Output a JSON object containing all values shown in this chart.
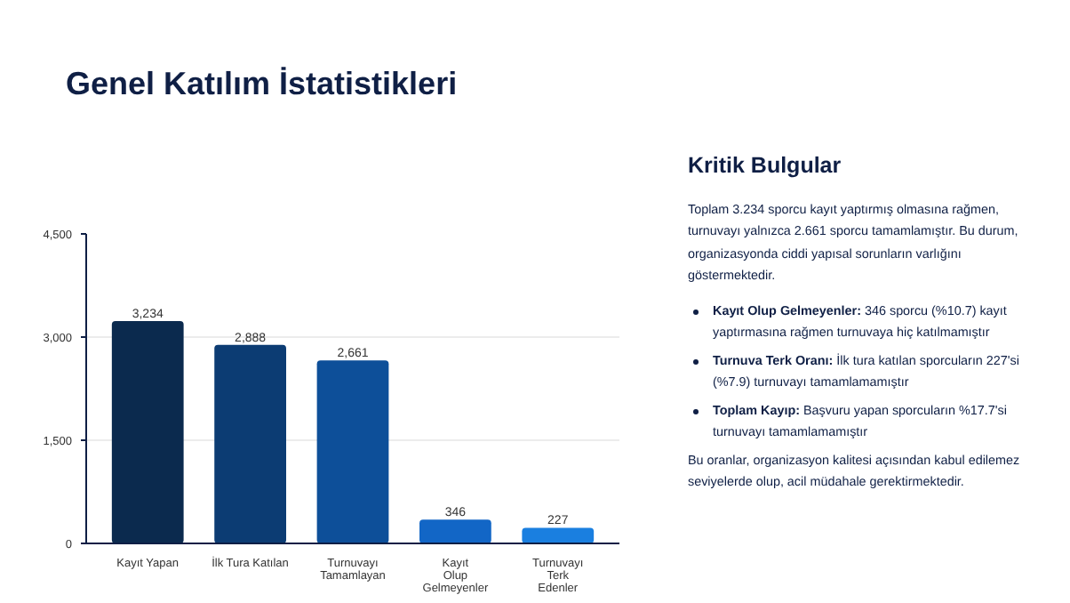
{
  "chart_data": [
    {
      "type": "bar",
      "title": "Genel Katılım İstatistikleri",
      "categories": [
        "Kayıt Yapan",
        "İlk Tura Katılan",
        "Turnuvayı\nTamamlayan",
        "Kayıt\nOlup\nGelmeyenler",
        "Turnuvayı\nTerk\nEdenler"
      ],
      "values": [
        3234,
        2888,
        2661,
        346,
        227
      ],
      "colors": [
        "#0b2a4e",
        "#0c3c73",
        "#0d4f99",
        "#1266c6",
        "#1a7fe0"
      ],
      "value_labels": [
        "3,234",
        "2,888",
        "2,661",
        "346",
        "227"
      ],
      "ylim": [
        0,
        4500
      ],
      "yticks": [
        {
          "value": 0,
          "label": "0"
        },
        {
          "value": 1500,
          "label": "1,500"
        },
        {
          "value": 3000,
          "label": "3,000"
        },
        {
          "value": 4500,
          "label": "4,500"
        }
      ],
      "grid": "y"
    },
    {
      "type": "other",
      "title": "Kritik Bulgular",
      "annotations": [
        "Toplam 3.234 sporcu kayıt yaptırmış olmasına rağmen, turnuvayı yalnızca 2.661 sporcu tamamlamıştır. Bu durum, organizasyonda ciddi yapısal sorunların varlığını göstermektedir.",
        "Kayıt Olup Gelmeyenler: 346 sporcu (%10.7) kayıt yaptırmasına rağmen turnuvaya hiç katılmamıştır",
        "Turnuva Terk Oranı: İlk tura katılan sporcuların 227'si (%7.9) turnuvayı tamamlamamıştır",
        "Toplam Kayıp: Başvuru yapan sporcuların %17.7'si turnuvayı tamamlamamıştır",
        "Bu oranlar, organizasyon kalitesi açısından kabul edilemez seviyelerde olup, acil müdahale gerektirmektedir."
      ]
    }
  ]
}
